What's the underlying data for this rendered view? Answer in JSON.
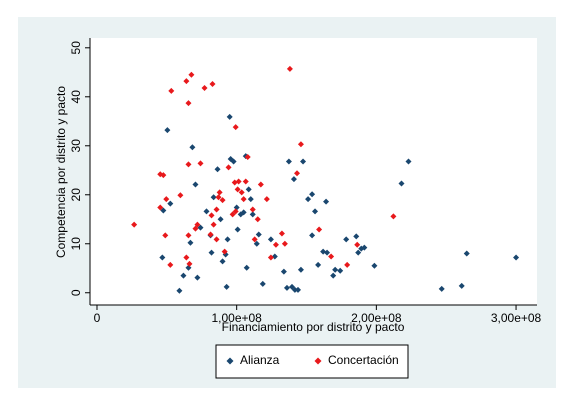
{
  "chart_data": {
    "type": "scatter",
    "xlabel": "Financiamiento por distrito y pacto",
    "ylabel": "Competencia por distrito y pacto",
    "xlim": [
      -5000000,
      315000000
    ],
    "ylim": [
      -2.5,
      52
    ],
    "xticks": [
      0,
      {
        "value": 100000000,
        "label": "1,00e+08"
      },
      {
        "value": 200000000,
        "label": "2,00e+08"
      },
      {
        "value": 300000000,
        "label": "3,00e+08"
      }
    ],
    "yticks": [
      0,
      10,
      20,
      30,
      40,
      50
    ],
    "grid": false,
    "legend": "bottom",
    "series": [
      {
        "name": "Alianza",
        "color": "#1a476f",
        "x": [
          50400000,
          47500000,
          46800000,
          52500000,
          59000000,
          61900000,
          65500000,
          66900000,
          68300000,
          70500000,
          71900000,
          74100000,
          78400000,
          82000000,
          81300000,
          83500000,
          86300000,
          88500000,
          89900000,
          92100000,
          93500000,
          92800000,
          95000000,
          95700000,
          97800000,
          100000000,
          100700000,
          102900000,
          105000000,
          106500000,
          107200000,
          108600000,
          110100000,
          111500000,
          114400000,
          115800000,
          118700000,
          124500000,
          127300000,
          133800000,
          136000000,
          137400000,
          139600000,
          141700000,
          141000000,
          143900000,
          146000000,
          147500000,
          151100000,
          154000000,
          154000000,
          156100000,
          158300000,
          161900000,
          164000000,
          164700000,
          169100000,
          170500000,
          174100000,
          178400000,
          185600000,
          187000000,
          189200000,
          191400000,
          198600000,
          218000000,
          223000000,
          246800000,
          264700000,
          261100000,
          300000000
        ],
        "values": [
          33.2,
          16.8,
          7.2,
          18.2,
          0.4,
          3.5,
          5.1,
          10.2,
          29.7,
          22.1,
          3.1,
          13.3,
          16.6,
          8.2,
          11.7,
          19.5,
          25.2,
          15.0,
          6.4,
          7.8,
          10.9,
          1.2,
          35.9,
          27.3,
          26.8,
          17.4,
          12.9,
          16.0,
          16.4,
          27.9,
          5.1,
          21.1,
          19.1,
          16.0,
          10.0,
          11.9,
          1.8,
          10.9,
          7.4,
          4.3,
          1.0,
          26.8,
          1.2,
          0.6,
          23.2,
          0.6,
          4.7,
          26.8,
          19.1,
          20.1,
          11.7,
          16.6,
          5.7,
          8.4,
          18.6,
          8.2,
          3.5,
          4.7,
          4.5,
          10.9,
          11.5,
          8.2,
          9.0,
          9.2,
          5.5,
          22.3,
          26.8,
          0.8,
          8.0,
          1.4,
          7.2
        ]
      },
      {
        "name": "Concertación",
        "color": "#e8191c",
        "x": [
          26600000,
          45300000,
          45300000,
          47500000,
          49600000,
          48900000,
          52500000,
          53200000,
          59700000,
          64000000,
          65500000,
          65500000,
          65500000,
          66200000,
          64000000,
          67600000,
          70500000,
          71900000,
          74100000,
          77000000,
          81300000,
          82700000,
          82000000,
          83500000,
          85600000,
          85600000,
          87800000,
          87000000,
          89900000,
          91400000,
          94200000,
          97100000,
          99300000,
          98600000,
          99300000,
          100700000,
          101400000,
          103600000,
          105000000,
          106500000,
          107900000,
          111500000,
          112900000,
          115100000,
          117300000,
          121600000,
          124500000,
          128100000,
          132400000,
          134500000,
          138100000,
          143200000,
          146000000,
          159000000,
          167600000,
          179100000,
          186300000,
          212200000
        ],
        "values": [
          13.9,
          24.2,
          17.4,
          24.0,
          19.1,
          11.7,
          5.7,
          41.2,
          19.9,
          43.2,
          38.7,
          26.2,
          11.7,
          5.9,
          7.2,
          44.5,
          13.1,
          13.9,
          26.4,
          41.8,
          11.9,
          42.6,
          15.8,
          13.9,
          17.0,
          10.9,
          20.5,
          19.5,
          18.9,
          8.4,
          25.6,
          16.0,
          16.6,
          22.5,
          33.8,
          21.1,
          22.7,
          20.5,
          19.1,
          22.7,
          27.7,
          17.0,
          10.9,
          15.0,
          22.1,
          19.1,
          7.2,
          9.8,
          12.1,
          10.0,
          45.7,
          24.4,
          30.3,
          12.9,
          7.4,
          5.7,
          9.8,
          15.6
        ]
      }
    ]
  }
}
